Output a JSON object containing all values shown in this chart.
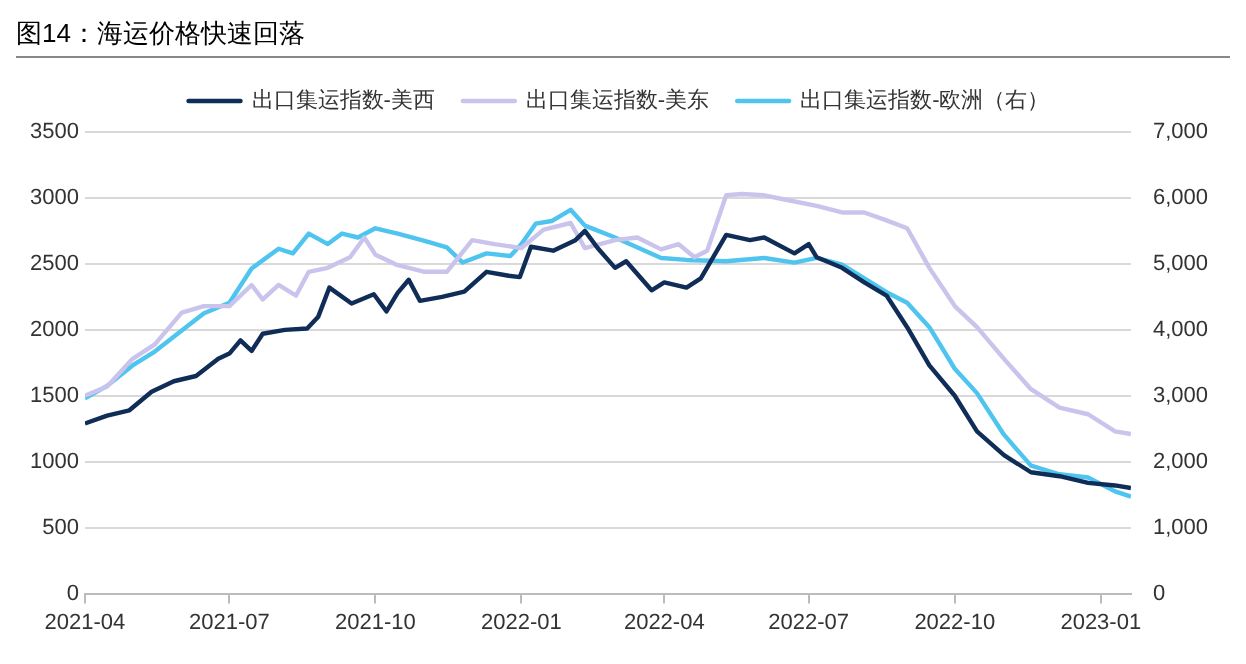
{
  "chart_data": {
    "type": "line",
    "title": "图14：海运价格快速回落",
    "xlim": [
      "2021-04-01",
      "2023-01-20"
    ],
    "xticks": [
      "2021-04",
      "2021-07",
      "2021-10",
      "2022-01",
      "2022-04",
      "2022-07",
      "2022-10",
      "2023-01"
    ],
    "ylim": [
      0,
      3500
    ],
    "yticks": [
      0,
      500,
      1000,
      1500,
      2000,
      2500,
      3000,
      3500
    ],
    "y2lim": [
      0,
      7000
    ],
    "y2ticks": [
      {
        "value": 0,
        "label": "0"
      },
      {
        "value": 1000,
        "label": "1,000"
      },
      {
        "value": 2000,
        "label": "2,000"
      },
      {
        "value": 3000,
        "label": "3,000"
      },
      {
        "value": 4000,
        "label": "4,000"
      },
      {
        "value": 5000,
        "label": "5,000"
      },
      {
        "value": 6000,
        "label": "6,000"
      },
      {
        "value": 7000,
        "label": "7,000"
      }
    ],
    "grid": "y",
    "legend": "top",
    "marker": "none",
    "line_style": "solid",
    "series": [
      {
        "name": "出口集运指数-美西",
        "color": "#0f2d57",
        "x": [
          "2021-04-01",
          "2021-04-15",
          "2021-04-29",
          "2021-05-13",
          "2021-05-27",
          "2021-06-10",
          "2021-06-24",
          "2021-07-01",
          "2021-07-08",
          "2021-07-15",
          "2021-07-22",
          "2021-08-05",
          "2021-08-19",
          "2021-08-26",
          "2021-09-02",
          "2021-09-16",
          "2021-09-30",
          "2021-10-08",
          "2021-10-15",
          "2021-10-22",
          "2021-10-29",
          "2021-11-12",
          "2021-11-26",
          "2021-12-10",
          "2021-12-24",
          "2021-12-31",
          "2022-01-07",
          "2022-01-21",
          "2022-02-04",
          "2022-02-10",
          "2022-02-18",
          "2022-03-01",
          "2022-03-08",
          "2022-03-24",
          "2022-04-01",
          "2022-04-15",
          "2022-04-24",
          "2022-05-10",
          "2022-05-25",
          "2022-06-03",
          "2022-06-22",
          "2022-07-01",
          "2022-07-06",
          "2022-07-22",
          "2022-08-05",
          "2022-08-19",
          "2022-09-01",
          "2022-09-15",
          "2022-10-01",
          "2022-10-15",
          "2022-11-01",
          "2022-11-18",
          "2022-12-06",
          "2022-12-24",
          "2023-01-10",
          "2023-01-20"
        ],
        "values": [
          1290,
          1350,
          1390,
          1530,
          1610,
          1650,
          1780,
          1820,
          1920,
          1840,
          1970,
          2000,
          2010,
          2100,
          2320,
          2200,
          2270,
          2140,
          2280,
          2380,
          2220,
          2250,
          2290,
          2440,
          2410,
          2400,
          2630,
          2600,
          2680,
          2750,
          2620,
          2470,
          2520,
          2300,
          2360,
          2320,
          2390,
          2720,
          2680,
          2700,
          2580,
          2650,
          2550,
          2470,
          2360,
          2260,
          2020,
          1730,
          1500,
          1230,
          1050,
          920,
          890,
          840,
          820,
          800
        ]
      },
      {
        "name": "出口集运指数-美东",
        "color": "#cac4ec",
        "x": [
          "2021-04-01",
          "2021-04-15",
          "2021-05-01",
          "2021-05-15",
          "2021-06-01",
          "2021-06-15",
          "2021-07-01",
          "2021-07-15",
          "2021-07-22",
          "2021-08-01",
          "2021-08-12",
          "2021-08-20",
          "2021-09-01",
          "2021-09-15",
          "2021-09-24",
          "2021-10-01",
          "2021-10-15",
          "2021-11-01",
          "2021-11-15",
          "2021-12-01",
          "2021-12-15",
          "2022-01-01",
          "2022-01-15",
          "2022-02-01",
          "2022-02-10",
          "2022-03-01",
          "2022-03-15",
          "2022-03-30",
          "2022-04-10",
          "2022-04-20",
          "2022-04-28",
          "2022-05-10",
          "2022-05-20",
          "2022-06-03",
          "2022-06-15",
          "2022-07-06",
          "2022-07-22",
          "2022-08-05",
          "2022-08-19",
          "2022-09-01",
          "2022-09-15",
          "2022-10-01",
          "2022-10-15",
          "2022-11-01",
          "2022-11-18",
          "2022-12-06",
          "2022-12-24",
          "2023-01-10",
          "2023-01-20"
        ],
        "values": [
          1500,
          1570,
          1780,
          1890,
          2130,
          2180,
          2180,
          2340,
          2230,
          2340,
          2260,
          2440,
          2470,
          2550,
          2700,
          2570,
          2490,
          2440,
          2440,
          2680,
          2650,
          2620,
          2760,
          2810,
          2620,
          2680,
          2700,
          2610,
          2650,
          2550,
          2600,
          3020,
          3030,
          3020,
          2990,
          2940,
          2890,
          2890,
          2830,
          2770,
          2470,
          2180,
          2020,
          1780,
          1550,
          1410,
          1360,
          1230,
          1210
        ]
      },
      {
        "name": "出口集运指数-欧洲（右）",
        "color": "#4fc4ef",
        "axis": "y2",
        "x": [
          "2021-04-01",
          "2021-04-15",
          "2021-05-01",
          "2021-05-15",
          "2021-06-01",
          "2021-06-15",
          "2021-07-01",
          "2021-07-15",
          "2021-08-01",
          "2021-08-10",
          "2021-08-20",
          "2021-09-01",
          "2021-09-10",
          "2021-09-20",
          "2021-10-01",
          "2021-10-15",
          "2021-11-01",
          "2021-11-15",
          "2021-11-25",
          "2021-12-10",
          "2021-12-25",
          "2022-01-01",
          "2022-01-10",
          "2022-01-20",
          "2022-02-01",
          "2022-02-10",
          "2022-03-01",
          "2022-03-30",
          "2022-04-15",
          "2022-05-10",
          "2022-06-03",
          "2022-06-22",
          "2022-07-06",
          "2022-07-22",
          "2022-08-05",
          "2022-08-19",
          "2022-09-01",
          "2022-09-15",
          "2022-10-01",
          "2022-10-15",
          "2022-11-01",
          "2022-11-18",
          "2022-12-06",
          "2022-12-24",
          "2023-01-10",
          "2023-01-20"
        ],
        "values": [
          2960,
          3150,
          3460,
          3670,
          3990,
          4250,
          4410,
          4930,
          5230,
          5160,
          5460,
          5300,
          5460,
          5400,
          5540,
          5460,
          5350,
          5250,
          5020,
          5160,
          5120,
          5300,
          5610,
          5650,
          5820,
          5580,
          5400,
          5090,
          5060,
          5040,
          5090,
          5020,
          5090,
          4990,
          4780,
          4570,
          4410,
          4040,
          3410,
          3040,
          2410,
          1940,
          1810,
          1760,
          1550,
          1470
        ]
      }
    ]
  }
}
